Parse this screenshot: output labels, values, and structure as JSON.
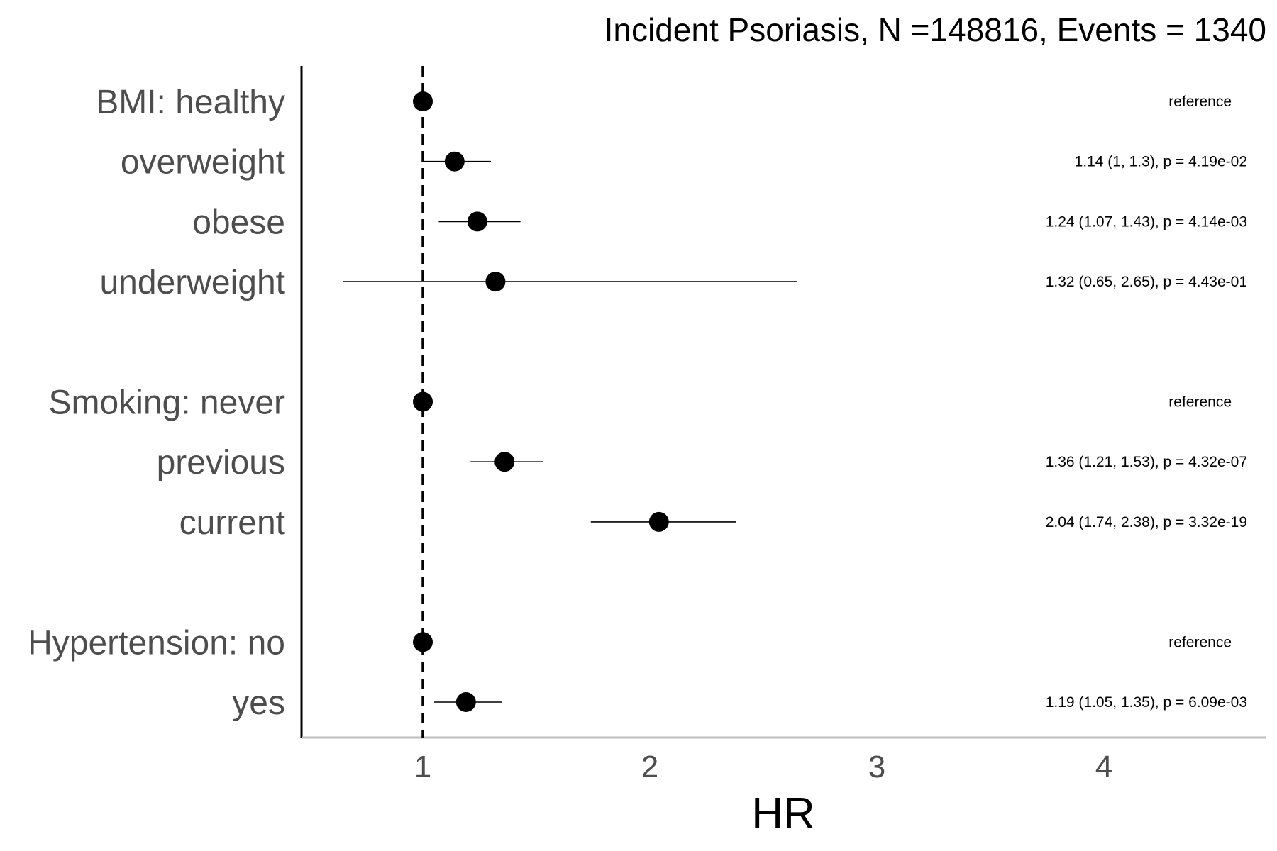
{
  "chart_data": {
    "type": "scatter",
    "subtype": "forest-plot",
    "title": "Incident Psoriasis, N =148816, Events = 1340",
    "xlabel": "HR",
    "ylabel": "",
    "xlim": [
      0.47,
      4.72
    ],
    "x_ticks": [
      {
        "value": 1,
        "label": "1"
      },
      {
        "value": 2,
        "label": "2"
      },
      {
        "value": 3,
        "label": "3"
      },
      {
        "value": 4,
        "label": "4"
      }
    ],
    "reference_line": {
      "x": 1,
      "style": "dashed"
    },
    "grid": false,
    "legend": "none",
    "rows": [
      {
        "label": "BMI: healthy",
        "hr": 1.0,
        "lower": null,
        "upper": null,
        "annotation": "reference",
        "is_reference": true
      },
      {
        "label": "overweight",
        "hr": 1.14,
        "lower": 1.0,
        "upper": 1.3,
        "annotation": "1.14 (1, 1.3), p = 4.19e-02",
        "is_reference": false
      },
      {
        "label": "obese",
        "hr": 1.24,
        "lower": 1.07,
        "upper": 1.43,
        "annotation": "1.24 (1.07, 1.43), p = 4.14e-03",
        "is_reference": false
      },
      {
        "label": "underweight",
        "hr": 1.32,
        "lower": 0.65,
        "upper": 2.65,
        "annotation": "1.32 (0.65, 2.65), p = 4.43e-01",
        "is_reference": false
      },
      {
        "label": "",
        "spacer": true
      },
      {
        "label": "Smoking: never",
        "hr": 1.0,
        "lower": null,
        "upper": null,
        "annotation": "reference",
        "is_reference": true
      },
      {
        "label": "previous",
        "hr": 1.36,
        "lower": 1.21,
        "upper": 1.53,
        "annotation": "1.36 (1.21, 1.53), p = 4.32e-07",
        "is_reference": false
      },
      {
        "label": "current",
        "hr": 2.04,
        "lower": 1.74,
        "upper": 2.38,
        "annotation": "2.04 (1.74, 2.38), p = 3.32e-19",
        "is_reference": false
      },
      {
        "label": "",
        "spacer": true
      },
      {
        "label": "Hypertension: no",
        "hr": 1.0,
        "lower": null,
        "upper": null,
        "annotation": "reference",
        "is_reference": true
      },
      {
        "label": "yes",
        "hr": 1.19,
        "lower": 1.05,
        "upper": 1.35,
        "annotation": "1.19 (1.05, 1.35), p = 6.09e-03",
        "is_reference": false
      }
    ]
  },
  "colors": {
    "point": "#000000",
    "label": "#4d4d4d",
    "x_axis_line": "#bdbdbd",
    "y_axis_line": "#000000"
  }
}
